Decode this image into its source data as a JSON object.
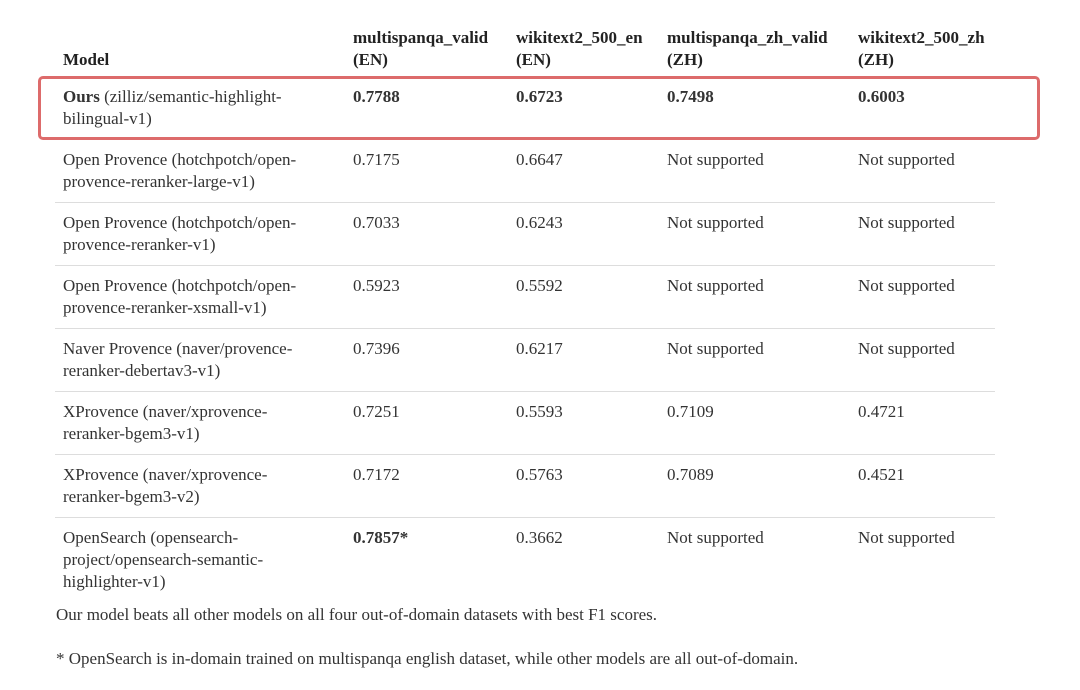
{
  "table": {
    "header": [
      [
        "Model"
      ],
      [
        "multispanqa_valid",
        "(EN)"
      ],
      [
        "wikitext2_500_en",
        "(EN)"
      ],
      [
        "multispanqa_zh_valid",
        "(ZH)"
      ],
      [
        "wikitext2_500_zh",
        "(ZH)"
      ]
    ],
    "rows": [
      {
        "model_strong": "Ours",
        "model": "(zilliz/semantic-highlight-bilingual-v1)",
        "scores": [
          "0.7788",
          "0.6723",
          "0.7498",
          "0.6003"
        ],
        "bold": [
          true,
          true,
          true,
          true
        ],
        "highlighted": true
      },
      {
        "model": "Open Provence (hotchpotch/open-provence-reranker-large-v1)",
        "scores": [
          "0.7175",
          "0.6647",
          "Not supported",
          "Not supported"
        ]
      },
      {
        "model": "Open Provence (hotchpotch/open-provence-reranker-v1)",
        "scores": [
          "0.7033",
          "0.6243",
          "Not supported",
          "Not supported"
        ]
      },
      {
        "model": "Open Provence (hotchpotch/open-provence-reranker-xsmall-v1)",
        "scores": [
          "0.5923",
          "0.5592",
          "Not supported",
          "Not supported"
        ]
      },
      {
        "model": "Naver Provence (naver/provence-reranker-debertav3-v1)",
        "scores": [
          "0.7396",
          "0.6217",
          "Not supported",
          "Not supported"
        ]
      },
      {
        "model": "XProvence (naver/xprovence-reranker-bgem3-v1)",
        "scores": [
          "0.7251",
          "0.5593",
          "0.7109",
          "0.4721"
        ]
      },
      {
        "model": "XProvence (naver/xprovence-reranker-bgem3-v2)",
        "scores": [
          "0.7172",
          "0.5763",
          "0.7089",
          "0.4521"
        ]
      },
      {
        "model": "OpenSearch (opensearch-project/opensearch-semantic-highlighter-v1)",
        "scores": [
          "0.7857*",
          "0.3662",
          "Not supported",
          "Not supported"
        ],
        "bold": [
          true,
          false,
          false,
          false
        ]
      }
    ]
  },
  "notes": [
    "Our model beats all other models on all four out-of-domain datasets with best F1 scores.",
    "* OpenSearch is in-domain trained on multispanqa english dataset, while other models are all out-of-domain."
  ]
}
